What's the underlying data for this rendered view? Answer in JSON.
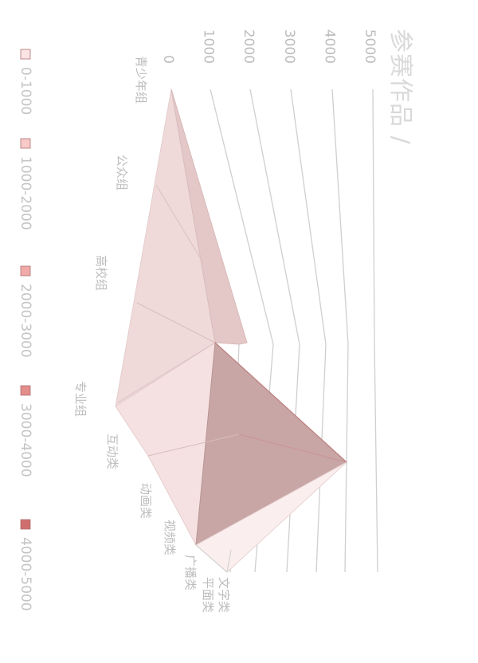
{
  "chart_data": {
    "type": "surface-3d",
    "title": "参赛作品 /",
    "z_axis": {
      "ticks": [
        "0",
        "1000",
        "2000",
        "3000",
        "4000",
        "5000"
      ],
      "range": [
        0,
        5000
      ]
    },
    "group_categories": [
      "青少年组",
      "公众组",
      "高校组",
      "专业组"
    ],
    "type_categories": [
      "互动类",
      "动画类",
      "视频类",
      "广播类",
      "平面类",
      "文字类"
    ],
    "legend": [
      {
        "label": "0-1000",
        "color": "#fce4e4"
      },
      {
        "label": "1000-2000",
        "color": "#f7c9c9"
      },
      {
        "label": "2000-3000",
        "color": "#f0aaaa"
      },
      {
        "label": "3000-4000",
        "color": "#e38d8d"
      },
      {
        "label": "4000-5000",
        "color": "#d06e6e"
      }
    ],
    "legend_position": "bottom"
  }
}
